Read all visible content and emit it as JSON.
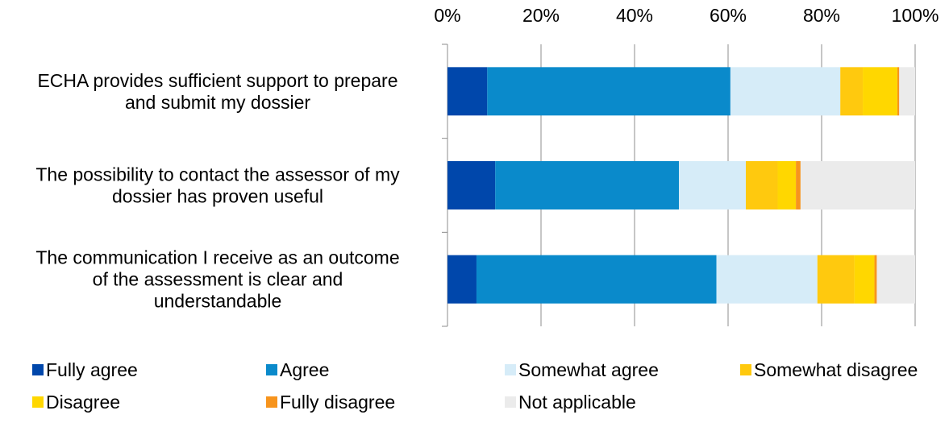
{
  "chart_data": {
    "type": "bar",
    "orientation": "horizontal",
    "stacked": true,
    "normalized_percent": true,
    "categories": [
      "ECHA provides sufficient support to prepare and submit my dossier",
      "The possibility to contact the assessor of my dossier has proven useful",
      "The communication I receive as an outcome of the assessment is clear and understandable"
    ],
    "category_lines": [
      [
        "ECHA provides sufficient support to prepare",
        "and submit my dossier"
      ],
      [
        "The possibility to contact the assessor of my",
        "dossier has proven useful"
      ],
      [
        "The communication I receive as an outcome",
        "of the assessment is clear and",
        "understandable"
      ]
    ],
    "series": [
      {
        "name": "Fully agree",
        "color": "#0047AB",
        "values": [
          8.5,
          10.2,
          6.2
        ]
      },
      {
        "name": "Agree",
        "color": "#0A8ACB",
        "values": [
          52.0,
          39.3,
          51.3
        ]
      },
      {
        "name": "Somewhat agree",
        "color": "#D6ECF8",
        "values": [
          23.5,
          14.3,
          21.6
        ]
      },
      {
        "name": "Somewhat disagree",
        "color": "#FFC90E",
        "values": [
          4.8,
          6.8,
          7.9
        ]
      },
      {
        "name": "Disagree",
        "color": "#FFD700",
        "values": [
          7.4,
          3.9,
          4.3
        ]
      },
      {
        "name": "Fully disagree",
        "color": "#F7941D",
        "values": [
          0.4,
          1.0,
          0.5
        ]
      },
      {
        "name": "Not applicable",
        "color": "#EBEBEB",
        "values": [
          3.4,
          24.5,
          8.2
        ]
      }
    ],
    "xlim": [
      0,
      100
    ],
    "xticks": [
      "0%",
      "20%",
      "40%",
      "60%",
      "80%",
      "100%"
    ],
    "xtick_values": [
      0,
      20,
      40,
      60,
      80,
      100
    ],
    "x_axis_position": "top",
    "grid": true,
    "legend": {
      "position": "bottom",
      "columns": 4
    },
    "title": "",
    "xlabel": "",
    "ylabel": ""
  }
}
